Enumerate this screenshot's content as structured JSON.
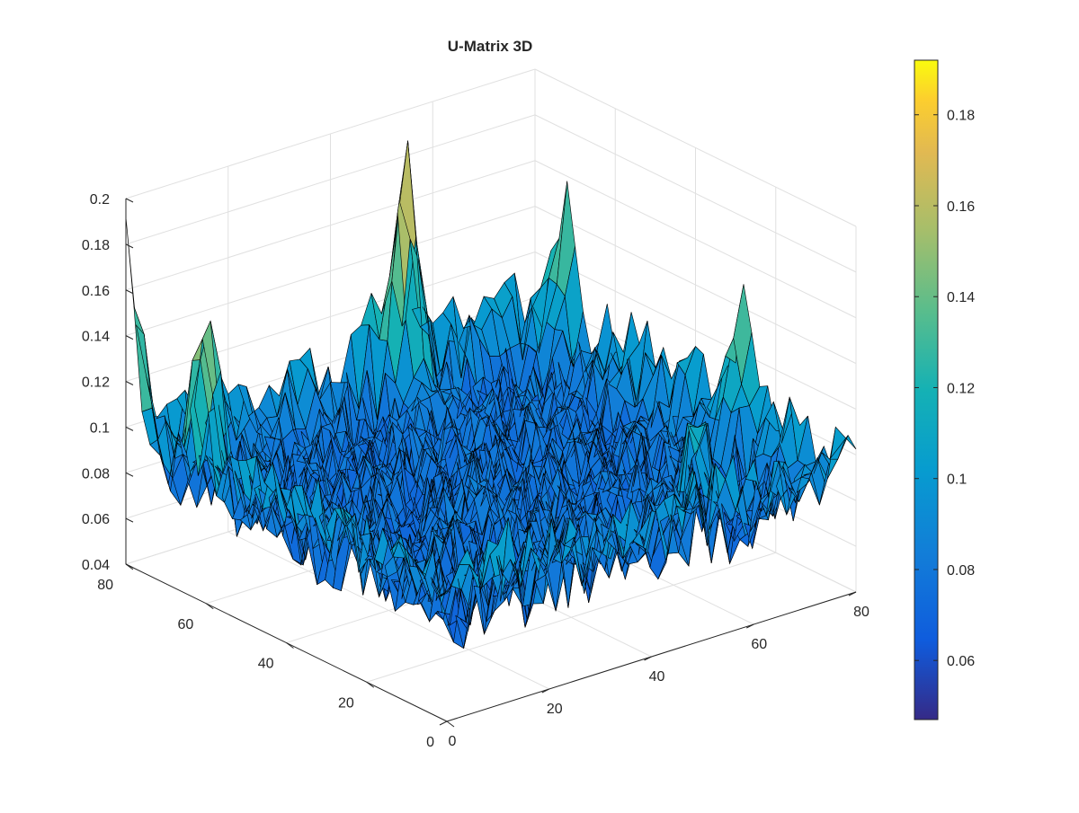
{
  "chart_data": {
    "type": "surface",
    "title": "U-Matrix 3D",
    "xlabel": "",
    "ylabel": "",
    "zlabel": "",
    "xlim": [
      0,
      80
    ],
    "ylim": [
      0,
      80
    ],
    "zlim": [
      0.04,
      0.2
    ],
    "x_ticks": [
      "0",
      "20",
      "40",
      "60",
      "80"
    ],
    "y_ticks": [
      "0",
      "20",
      "40",
      "60",
      "80"
    ],
    "z_ticks": [
      "0.04",
      "0.06",
      "0.08",
      "0.1",
      "0.12",
      "0.14",
      "0.16",
      "0.18",
      "0.2"
    ],
    "grid": true,
    "colormap": "parula",
    "colorbar": {
      "range": [
        0.047,
        0.192
      ],
      "ticks": [
        "0.06",
        "0.08",
        "0.1",
        "0.12",
        "0.14",
        "0.16",
        "0.18"
      ]
    },
    "surface_summary": {
      "grid_size": [
        80,
        80
      ],
      "baseline_value": 0.075,
      "edge_ridge_value": 0.105,
      "peaks": [
        {
          "x": 52,
          "y": 76,
          "z": 0.19
        },
        {
          "x": 0,
          "y": 80,
          "z": 0.17
        },
        {
          "x": 4,
          "y": 65,
          "z": 0.16
        },
        {
          "x": 80,
          "y": 72,
          "z": 0.13
        },
        {
          "x": 80,
          "y": 28,
          "z": 0.12
        },
        {
          "x": 60,
          "y": 14,
          "z": 0.12
        }
      ]
    }
  },
  "colors": {
    "surface_edge": "#000000",
    "grid": "#e0e0e0",
    "axis": "#262626"
  }
}
